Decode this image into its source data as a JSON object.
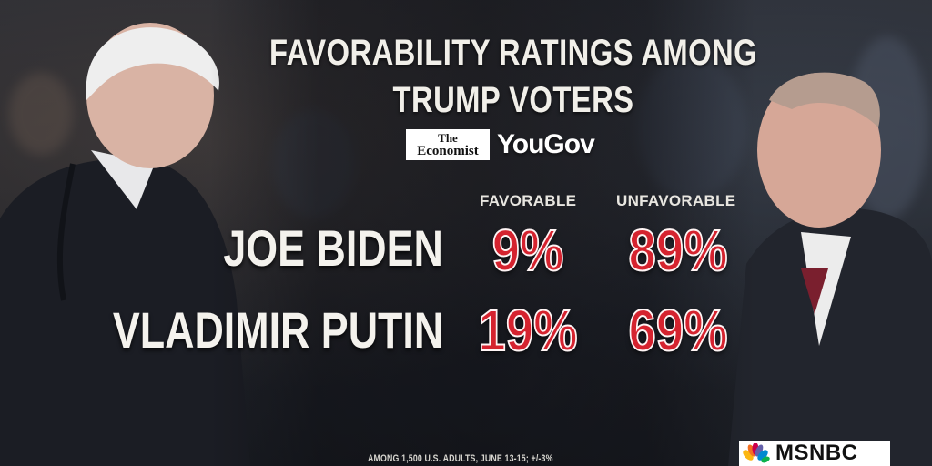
{
  "title_line1": "FAVORABILITY RATINGS AMONG",
  "title_line2": "TRUMP VOTERS",
  "logos": {
    "economist_line1": "The",
    "economist_line2": "Economist",
    "yougov": "YouGov"
  },
  "columns": {
    "favorable": "FAVORABLE",
    "unfavorable": "UNFAVORABLE"
  },
  "rows": [
    {
      "name": "JOE BIDEN",
      "favorable": "9%",
      "unfavorable": "89%"
    },
    {
      "name": "VLADIMIR PUTIN",
      "favorable": "19%",
      "unfavorable": "69%"
    }
  ],
  "footnote": "AMONG 1,500 U.S. ADULTS, JUNE 13-15; +/-3%",
  "network": "MSNBC",
  "colors": {
    "percent_red": "#d5232f",
    "title_text": "#f1efe9",
    "peacock": [
      "#fcb711",
      "#f37021",
      "#cc004c",
      "#6460aa",
      "#0089d0",
      "#0db14b"
    ]
  }
}
